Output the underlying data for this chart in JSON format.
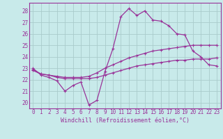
{
  "background_color": "#c8eaea",
  "grid_color": "#aacccc",
  "line_color": "#993399",
  "xlabel": "Windchill (Refroidissement éolien,°C)",
  "xlim": [
    -0.5,
    23.5
  ],
  "ylim": [
    19.5,
    28.7
  ],
  "yticks": [
    20,
    21,
    22,
    23,
    24,
    25,
    26,
    27,
    28
  ],
  "xticks": [
    0,
    1,
    2,
    3,
    4,
    5,
    6,
    7,
    8,
    9,
    10,
    11,
    12,
    13,
    14,
    15,
    16,
    17,
    18,
    19,
    20,
    21,
    22,
    23
  ],
  "line1_x": [
    0,
    1,
    2,
    3,
    4,
    5,
    6,
    7,
    8,
    9,
    10,
    11,
    12,
    13,
    14,
    15,
    16,
    17,
    18,
    19,
    20,
    21,
    22,
    23
  ],
  "line1_y": [
    23.0,
    22.4,
    22.2,
    21.9,
    21.0,
    21.5,
    21.8,
    19.8,
    20.2,
    22.7,
    24.7,
    27.5,
    28.2,
    27.6,
    28.0,
    27.2,
    27.1,
    26.7,
    26.0,
    25.9,
    24.5,
    24.0,
    23.3,
    23.2
  ],
  "line2_x": [
    0,
    1,
    2,
    3,
    4,
    5,
    6,
    7,
    8,
    9,
    10,
    11,
    12,
    13,
    14,
    15,
    16,
    17,
    18,
    19,
    20,
    21,
    22,
    23
  ],
  "line2_y": [
    22.9,
    22.5,
    22.4,
    22.3,
    22.2,
    22.2,
    22.2,
    22.3,
    22.6,
    23.0,
    23.3,
    23.6,
    23.9,
    24.1,
    24.3,
    24.5,
    24.6,
    24.7,
    24.8,
    24.9,
    25.0,
    25.0,
    25.0,
    25.0
  ],
  "line3_x": [
    0,
    1,
    2,
    3,
    4,
    5,
    6,
    7,
    8,
    9,
    10,
    11,
    12,
    13,
    14,
    15,
    16,
    17,
    18,
    19,
    20,
    21,
    22,
    23
  ],
  "line3_y": [
    22.8,
    22.5,
    22.4,
    22.2,
    22.1,
    22.1,
    22.1,
    22.1,
    22.2,
    22.4,
    22.6,
    22.8,
    23.0,
    23.2,
    23.3,
    23.4,
    23.5,
    23.6,
    23.7,
    23.7,
    23.8,
    23.8,
    23.8,
    23.9
  ],
  "tick_fontsize": 5.5,
  "xlabel_fontsize": 6.0,
  "spine_color": "#993399"
}
